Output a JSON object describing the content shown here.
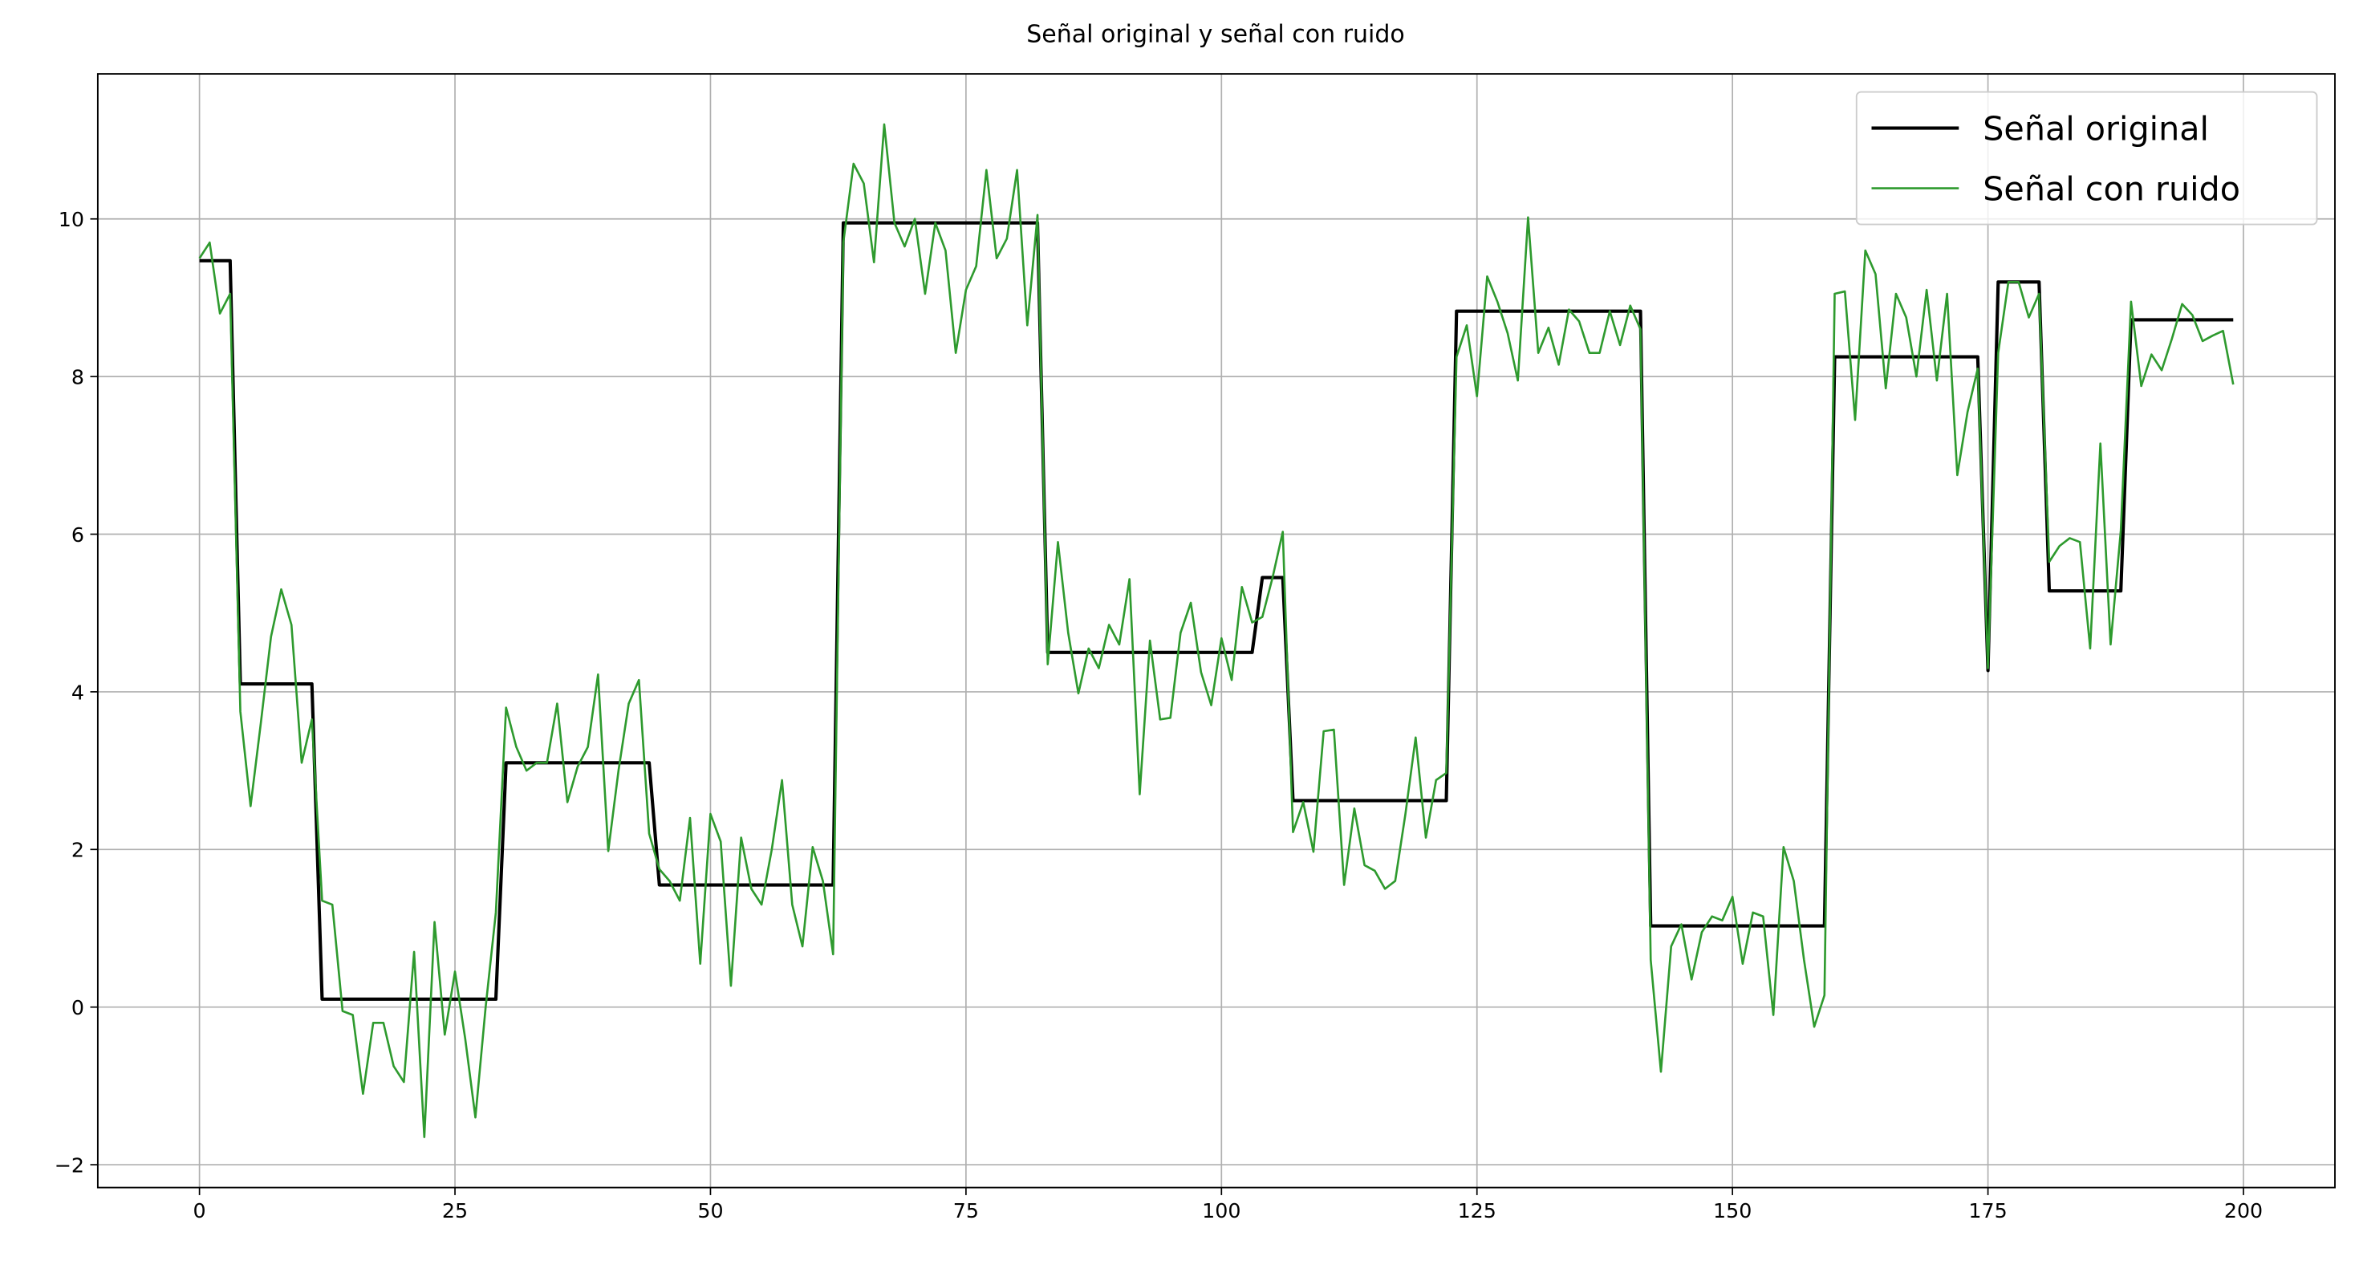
{
  "chart_data": {
    "type": "line",
    "title": "Señal original y señal con ruido",
    "x": [
      0,
      1,
      2,
      3,
      4,
      5,
      6,
      7,
      8,
      9,
      10,
      11,
      12,
      13,
      14,
      15,
      16,
      17,
      18,
      19,
      20,
      21,
      22,
      23,
      24,
      25,
      26,
      27,
      28,
      29,
      30,
      31,
      32,
      33,
      34,
      35,
      36,
      37,
      38,
      39,
      40,
      41,
      42,
      43,
      44,
      45,
      46,
      47,
      48,
      49,
      50,
      51,
      52,
      53,
      54,
      55,
      56,
      57,
      58,
      59,
      60,
      61,
      62,
      63,
      64,
      65,
      66,
      67,
      68,
      69,
      70,
      71,
      72,
      73,
      74,
      75,
      76,
      77,
      78,
      79,
      80,
      81,
      82,
      83,
      84,
      85,
      86,
      87,
      88,
      89,
      90,
      91,
      92,
      93,
      94,
      95,
      96,
      97,
      98,
      99,
      100,
      101,
      102,
      103,
      104,
      105,
      106,
      107,
      108,
      109,
      110,
      111,
      112,
      113,
      114,
      115,
      116,
      117,
      118,
      119,
      120,
      121,
      122,
      123,
      124,
      125,
      126,
      127,
      128,
      129,
      130,
      131,
      132,
      133,
      134,
      135,
      136,
      137,
      138,
      139,
      140,
      141,
      142,
      143,
      144,
      145,
      146,
      147,
      148,
      149,
      150,
      151,
      152,
      153,
      154,
      155,
      156,
      157,
      158,
      159,
      160,
      161,
      162,
      163,
      164,
      165,
      166,
      167,
      168,
      169,
      170,
      171,
      172,
      173,
      174,
      175,
      176,
      177,
      178,
      179,
      180,
      181,
      182,
      183,
      184,
      185,
      186,
      187,
      188,
      189,
      190,
      191,
      192,
      193,
      194,
      195,
      196,
      197,
      198,
      199
    ],
    "series": [
      {
        "name": "Señal original",
        "color": "#000000",
        "width": 2.2,
        "values": [
          9.47,
          9.47,
          9.47,
          9.47,
          4.1,
          4.1,
          4.1,
          4.1,
          4.1,
          4.1,
          4.1,
          4.1,
          0.1,
          0.1,
          0.1,
          0.1,
          0.1,
          0.1,
          0.1,
          0.1,
          0.1,
          0.1,
          0.1,
          0.1,
          0.1,
          0.1,
          0.1,
          0.1,
          0.1,
          0.1,
          3.1,
          3.1,
          3.1,
          3.1,
          3.1,
          3.1,
          3.1,
          3.1,
          3.1,
          3.1,
          3.1,
          3.1,
          3.1,
          3.1,
          3.1,
          1.55,
          1.55,
          1.55,
          1.55,
          1.55,
          1.55,
          1.55,
          1.55,
          1.55,
          1.55,
          1.55,
          1.55,
          1.55,
          1.55,
          1.55,
          1.55,
          1.55,
          1.55,
          9.95,
          9.95,
          9.95,
          9.95,
          9.95,
          9.95,
          9.95,
          9.95,
          9.95,
          9.95,
          9.95,
          9.95,
          9.95,
          9.95,
          9.95,
          9.95,
          9.95,
          9.95,
          9.95,
          9.95,
          4.5,
          4.5,
          4.5,
          4.5,
          4.5,
          4.5,
          4.5,
          4.5,
          4.5,
          4.5,
          4.5,
          4.5,
          4.5,
          4.5,
          4.5,
          4.5,
          4.5,
          4.5,
          4.5,
          4.5,
          4.5,
          5.45,
          5.45,
          5.45,
          2.62,
          2.62,
          2.62,
          2.62,
          2.62,
          2.62,
          2.62,
          2.62,
          2.62,
          2.62,
          2.62,
          2.62,
          2.62,
          2.62,
          2.62,
          2.62,
          8.83,
          8.83,
          8.83,
          8.83,
          8.83,
          8.83,
          8.83,
          8.83,
          8.83,
          8.83,
          8.83,
          8.83,
          8.83,
          8.83,
          8.83,
          8.83,
          8.83,
          8.83,
          8.83,
          1.03,
          1.03,
          1.03,
          1.03,
          1.03,
          1.03,
          1.03,
          1.03,
          1.03,
          1.03,
          1.03,
          1.03,
          1.03,
          1.03,
          1.03,
          1.03,
          1.03,
          1.03,
          8.25,
          8.25,
          8.25,
          8.25,
          8.25,
          8.25,
          8.25,
          8.25,
          8.25,
          8.25,
          8.25,
          8.25,
          8.25,
          8.25,
          8.25,
          4.27,
          9.2,
          9.2,
          9.2,
          9.2,
          9.2,
          5.28,
          5.28,
          5.28,
          5.28,
          5.28,
          5.28,
          5.28,
          5.28,
          8.72,
          8.72,
          8.72,
          8.72,
          8.72,
          8.72,
          8.72,
          8.72,
          8.72,
          8.72,
          8.72
        ]
      },
      {
        "name": "Señal con ruido",
        "color": "#2e9a2e",
        "width": 1.4,
        "values": [
          9.5,
          9.7,
          8.8,
          9.05,
          3.75,
          2.55,
          3.6,
          4.7,
          5.3,
          4.85,
          3.1,
          3.65,
          1.35,
          1.3,
          -0.05,
          -0.1,
          -1.1,
          -0.2,
          -0.2,
          -0.75,
          -0.95,
          0.7,
          -1.65,
          1.08,
          -0.35,
          0.45,
          -0.4,
          -1.4,
          0.0,
          1.2,
          3.8,
          3.3,
          3.0,
          3.1,
          3.1,
          3.85,
          2.6,
          3.05,
          3.3,
          4.22,
          1.98,
          3.0,
          3.85,
          4.15,
          2.2,
          1.75,
          1.6,
          1.35,
          2.4,
          0.55,
          2.45,
          2.1,
          0.27,
          2.15,
          1.5,
          1.3,
          2.0,
          2.88,
          1.3,
          0.77,
          2.03,
          1.6,
          0.67,
          9.7,
          10.7,
          10.45,
          9.45,
          11.2,
          9.95,
          9.65,
          10.0,
          9.05,
          9.95,
          9.6,
          8.3,
          9.1,
          9.4,
          10.62,
          9.5,
          9.75,
          10.62,
          8.65,
          10.05,
          4.35,
          5.9,
          4.75,
          3.98,
          4.55,
          4.3,
          4.85,
          4.6,
          5.43,
          2.7,
          4.65,
          3.65,
          3.67,
          4.75,
          5.13,
          4.25,
          3.83,
          4.68,
          4.15,
          5.33,
          4.88,
          4.95,
          5.45,
          6.03,
          2.22,
          2.6,
          1.97,
          3.5,
          3.52,
          1.55,
          2.52,
          1.8,
          1.73,
          1.5,
          1.6,
          2.45,
          3.42,
          2.15,
          2.88,
          2.97,
          8.25,
          8.65,
          7.75,
          9.27,
          8.95,
          8.55,
          7.95,
          10.02,
          8.3,
          8.62,
          8.15,
          8.85,
          8.7,
          8.3,
          8.3,
          8.83,
          8.4,
          8.9,
          8.6,
          0.6,
          -0.82,
          0.77,
          1.05,
          0.35,
          0.95,
          1.15,
          1.1,
          1.4,
          0.55,
          1.2,
          1.15,
          -0.1,
          2.03,
          1.6,
          0.6,
          -0.25,
          0.15,
          9.05,
          9.08,
          7.45,
          9.6,
          9.3,
          7.85,
          9.05,
          8.75,
          8.0,
          9.1,
          7.95,
          9.05,
          6.75,
          7.55,
          8.1,
          4.3,
          8.3,
          9.2,
          9.2,
          8.75,
          9.05,
          5.65,
          5.85,
          5.95,
          5.9,
          4.55,
          7.15,
          4.6,
          6.05,
          8.95,
          7.88,
          8.28,
          8.08,
          8.48,
          8.92,
          8.78,
          8.45,
          8.52,
          8.58,
          7.9
        ]
      }
    ],
    "xlim": [
      -9.95,
      208.95
    ],
    "ylim": [
      -2.29,
      11.84
    ],
    "xticks": [
      0,
      25,
      50,
      75,
      100,
      125,
      150,
      175,
      200
    ],
    "yticks": [
      {
        "value": -2,
        "label": "−2"
      },
      0,
      2,
      4,
      6,
      8,
      10
    ],
    "grid": true,
    "legend": "upper right"
  }
}
